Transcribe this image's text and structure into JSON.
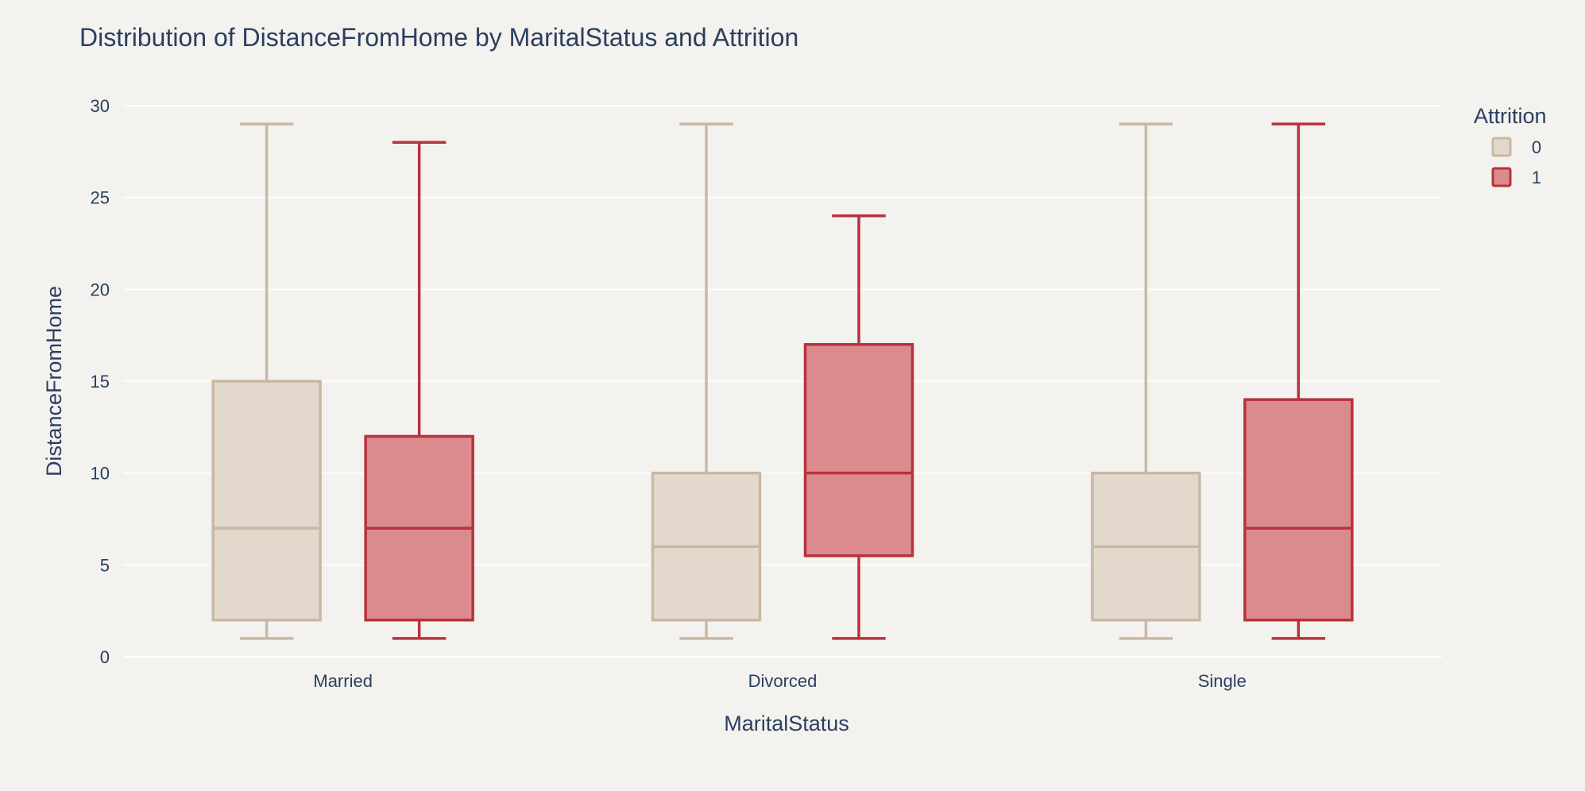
{
  "chart_data": {
    "type": "box",
    "title": "Distribution of DistanceFromHome by MaritalStatus and Attrition",
    "xlabel": "MaritalStatus",
    "ylabel": "DistanceFromHome",
    "categories": [
      "Married",
      "Divorced",
      "Single"
    ],
    "ylim": [
      0,
      30
    ],
    "yticks": [
      0,
      5,
      10,
      15,
      20,
      25,
      30
    ],
    "grid": true,
    "legend": {
      "title": "Attrition",
      "placement": "top-right"
    },
    "series": [
      {
        "name": "0",
        "color": "#c9b8a4",
        "fill": "#e2d8cb",
        "boxes": [
          {
            "category": "Married",
            "min": 1,
            "q1": 2,
            "median": 7,
            "q3": 15,
            "max": 29
          },
          {
            "category": "Divorced",
            "min": 1,
            "q1": 2,
            "median": 6,
            "q3": 10,
            "max": 29
          },
          {
            "category": "Single",
            "min": 1,
            "q1": 2,
            "median": 6,
            "q3": 10,
            "max": 29
          }
        ]
      },
      {
        "name": "1",
        "color": "#b8323c",
        "fill": "#db8b8d",
        "boxes": [
          {
            "category": "Married",
            "min": 1,
            "q1": 2,
            "median": 7,
            "q3": 12,
            "max": 28
          },
          {
            "category": "Divorced",
            "min": 1,
            "q1": 5.5,
            "median": 10,
            "q3": 17,
            "max": 24
          },
          {
            "category": "Single",
            "min": 1,
            "q1": 2,
            "median": 7,
            "q3": 14,
            "max": 29
          }
        ]
      }
    ]
  }
}
